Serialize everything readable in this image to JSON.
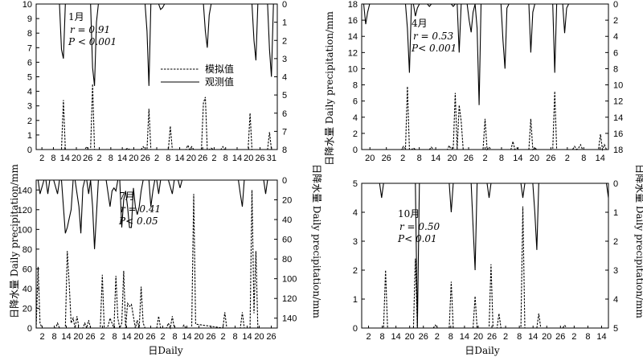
{
  "figure": {
    "xlabel": "日Daily",
    "ylabel_left": "日降水量 Daily precipitation/mm",
    "ylabel_right": "日降水量 Daily precipitation/mm",
    "legend_sim": "模拟值",
    "legend_obs": "观测值"
  },
  "chart_data": [
    {
      "type": "line",
      "month": "1月",
      "stat_r": "r = 0.91",
      "stat_p": "P < 0.001",
      "xlim": [
        0,
        124
      ],
      "xticks": [
        "2",
        "8",
        "14",
        "20",
        "26",
        "2",
        "8",
        "14",
        "20",
        "26",
        "2",
        "8",
        "14",
        "20",
        "26",
        "2",
        "8",
        "14",
        "20",
        "26",
        "31"
      ],
      "ylim_left": [
        0,
        10
      ],
      "yticks_left": [
        0,
        1,
        2,
        3,
        4,
        5,
        6,
        7,
        8,
        9,
        10
      ],
      "ylim_right": [
        0,
        8
      ],
      "yticks_right": [
        0,
        1,
        2,
        3,
        4,
        5,
        6,
        7,
        8
      ],
      "right_inverted": true,
      "legend": true,
      "series": [
        {
          "name": "模拟值",
          "style": "dashed",
          "axis": "left",
          "x": [
            0,
            12,
            13,
            14,
            15,
            16,
            25,
            26,
            27,
            28,
            29,
            30,
            46,
            47,
            48,
            49,
            50,
            51,
            52,
            53,
            54,
            55,
            56,
            57,
            58,
            59,
            60,
            68,
            69,
            70,
            77,
            78,
            79,
            80,
            81,
            85,
            86,
            87,
            88,
            89,
            90,
            91,
            95,
            96,
            97,
            98,
            108,
            109,
            110,
            111,
            112,
            119,
            120,
            121,
            124
          ],
          "y": [
            0,
            0,
            0,
            3.4,
            0,
            0,
            0,
            0.2,
            0,
            0,
            4.5,
            0,
            0,
            0.1,
            0,
            0,
            0,
            0,
            0,
            0,
            0,
            0.2,
            0,
            0,
            2.8,
            0,
            0,
            0,
            1.6,
            0,
            0,
            0.3,
            0,
            0.2,
            0,
            0,
            3.2,
            3.6,
            0,
            0,
            0.1,
            0,
            0,
            0.2,
            0,
            0,
            0,
            0,
            2.5,
            0,
            0,
            0,
            1.2,
            0,
            0
          ]
        },
        {
          "name": "观测值",
          "style": "solid",
          "axis": "right",
          "x": [
            0,
            12,
            13,
            14,
            15,
            16,
            28,
            29,
            30,
            31,
            32,
            56,
            57,
            58,
            59,
            63,
            64,
            65,
            66,
            68,
            69,
            86,
            87,
            88,
            89,
            90,
            111,
            112,
            113,
            114,
            119,
            120,
            121,
            122,
            124
          ],
          "y": [
            0,
            0,
            2.5,
            3,
            0,
            0,
            0,
            3.5,
            4.5,
            1,
            0,
            0,
            1.5,
            4.5,
            0,
            0,
            0.3,
            0.2,
            0,
            0,
            0,
            0,
            1.5,
            2.4,
            0.6,
            0,
            0,
            2,
            3.1,
            0,
            0,
            2.5,
            4,
            0,
            0
          ]
        }
      ]
    },
    {
      "type": "line",
      "month": "4月",
      "stat_r": "r = 0.53",
      "stat_p": "P< 0.001",
      "xlim": [
        0,
        124
      ],
      "xticks": [
        "20",
        "26",
        "2",
        "8",
        "14",
        "20",
        "26",
        "2",
        "8",
        "14",
        "20",
        "26",
        "2",
        "8",
        "14"
      ],
      "ylim_left": [
        0,
        18
      ],
      "yticks_left": [
        0,
        2,
        4,
        6,
        8,
        10,
        12,
        14,
        16,
        18
      ],
      "ylim_right": [
        0,
        18
      ],
      "yticks_right": [
        0,
        2,
        4,
        6,
        8,
        10,
        12,
        14,
        16,
        18
      ],
      "right_inverted": true,
      "legend": false,
      "series": [
        {
          "name": "模拟值",
          "style": "dashed",
          "axis": "left",
          "x": [
            0,
            20,
            21,
            22,
            23,
            24,
            25,
            26,
            27,
            34,
            35,
            36,
            43,
            44,
            45,
            46,
            47,
            48,
            49,
            50,
            51,
            52,
            60,
            61,
            62,
            63,
            64,
            65,
            66,
            75,
            76,
            77,
            78,
            79,
            80,
            84,
            85,
            86,
            87,
            88,
            96,
            97,
            98,
            99,
            106,
            107,
            108,
            109,
            110,
            111,
            112,
            119,
            120,
            121,
            122,
            123,
            124
          ],
          "y": [
            0,
            0,
            0.4,
            0.1,
            7.8,
            0,
            0,
            0.2,
            0,
            0,
            0.3,
            0,
            0,
            0.5,
            0,
            0,
            7,
            0,
            5.5,
            3.5,
            0,
            0,
            0,
            0,
            3.8,
            0,
            0.3,
            0,
            0,
            0,
            1,
            0,
            0.2,
            0,
            0,
            0,
            3.8,
            0,
            0.2,
            0,
            0,
            7.2,
            0,
            0,
            0,
            0.4,
            0,
            0.2,
            0.6,
            0,
            0,
            0,
            1.9,
            0,
            0.6,
            0,
            0
          ]
        },
        {
          "name": "观测值",
          "style": "solid",
          "axis": "right",
          "x": [
            0,
            1,
            2,
            3,
            4,
            22,
            23,
            24,
            25,
            26,
            27,
            28,
            29,
            31,
            33,
            34,
            35,
            36,
            37,
            45,
            46,
            47,
            48,
            49,
            50,
            53,
            54,
            55,
            56,
            57,
            58,
            59,
            60,
            61,
            62,
            70,
            71,
            72,
            73,
            74,
            75,
            84,
            85,
            86,
            87,
            88,
            89,
            90,
            96,
            97,
            98,
            99,
            101,
            102,
            103,
            104,
            105,
            124
          ],
          "y": [
            0,
            0,
            2.5,
            1,
            0,
            0,
            3,
            8.5,
            0,
            0,
            1.5,
            0.5,
            0,
            0,
            0,
            0.3,
            0,
            0,
            0,
            0,
            0.3,
            0,
            0,
            6,
            0,
            0,
            2,
            3.5,
            1,
            0,
            3,
            12.5,
            0,
            0,
            0,
            0,
            4.5,
            8,
            0.5,
            0,
            0,
            0,
            6,
            1,
            0,
            0,
            0,
            0,
            0,
            8.5,
            0,
            0,
            0,
            3.6,
            0.5,
            0,
            0,
            0
          ]
        }
      ]
    },
    {
      "type": "line",
      "month": "7月",
      "stat_r": "r = 0.41",
      "stat_p": "P< 0.05",
      "xlim": [
        0,
        124
      ],
      "xticks": [
        "2",
        "8",
        "14",
        "20",
        "26",
        "2",
        "8",
        "14",
        "20",
        "26",
        "2",
        "8",
        "14",
        "20",
        "26",
        "2",
        "8",
        "14",
        "20",
        "26"
      ],
      "ylim_left": [
        0,
        150
      ],
      "yticks_left": [
        0,
        20,
        40,
        60,
        80,
        100,
        120,
        140
      ],
      "ylim_right": [
        0,
        150
      ],
      "yticks_right": [
        0,
        20,
        40,
        60,
        80,
        100,
        120,
        140
      ],
      "right_inverted": true,
      "legend": false,
      "series": [
        {
          "name": "模拟值",
          "style": "dashed",
          "axis": "left",
          "x": [
            0,
            1,
            2,
            3,
            10,
            11,
            12,
            15,
            16,
            17,
            18,
            19,
            20,
            21,
            22,
            24,
            25,
            26,
            27,
            28,
            33,
            34,
            35,
            36,
            37,
            38,
            40,
            41,
            42,
            43,
            44,
            45,
            46,
            47,
            48,
            49,
            51,
            52,
            53,
            54,
            55,
            56,
            62,
            63,
            64,
            67,
            68,
            69,
            70,
            71,
            75,
            76,
            77,
            78,
            80,
            81,
            82,
            96,
            97,
            98,
            105,
            106,
            107,
            110,
            111,
            112,
            113,
            114,
            124
          ],
          "y": [
            0,
            62,
            5,
            0,
            0,
            5,
            0,
            0,
            78,
            45,
            5,
            10,
            0,
            12,
            0,
            0,
            5,
            0,
            8,
            0,
            0,
            54,
            0,
            0,
            2,
            10,
            0,
            53,
            10,
            0,
            5,
            58,
            0,
            25,
            22,
            24,
            0,
            8,
            0,
            42,
            5,
            0,
            0,
            12,
            0,
            0,
            5,
            0,
            12,
            0,
            0,
            3,
            0,
            0,
            0,
            136,
            4,
            0,
            16,
            0,
            0,
            16,
            0,
            0,
            140,
            15,
            78,
            0,
            0
          ]
        },
        {
          "name": "观测值",
          "style": "solid",
          "axis": "right",
          "x": [
            0,
            1,
            2,
            4,
            5,
            6,
            7,
            8,
            9,
            11,
            12,
            13,
            14,
            15,
            16,
            17,
            18,
            19,
            20,
            22,
            23,
            24,
            25,
            26,
            27,
            28,
            29,
            30,
            32,
            33,
            34,
            35,
            36,
            38,
            39,
            40,
            41,
            42,
            43,
            44,
            45,
            46,
            47,
            48,
            49,
            50,
            51,
            52,
            53,
            54,
            55,
            58,
            59,
            60,
            61,
            62,
            63,
            64,
            65,
            66,
            67,
            68,
            70,
            71,
            72,
            73,
            74,
            75,
            78,
            79,
            80,
            81,
            83,
            84,
            85,
            86,
            87,
            88,
            95,
            96,
            97,
            98,
            99,
            100,
            101,
            103,
            104,
            105,
            106,
            107,
            108,
            110,
            112,
            113,
            114,
            115,
            116,
            117,
            118,
            119,
            120,
            121,
            122,
            123,
            124
          ],
          "y": [
            0,
            0,
            14,
            0,
            0,
            14,
            0,
            0,
            0,
            14,
            0,
            0,
            27,
            54,
            48,
            39,
            30,
            0,
            0,
            27,
            54,
            8,
            0,
            0,
            14,
            0,
            27,
            70,
            0,
            0,
            0,
            0,
            0,
            27,
            11,
            8,
            11,
            0,
            0,
            48,
            20,
            11,
            27,
            48,
            48,
            8,
            27,
            35,
            27,
            11,
            0,
            0,
            27,
            11,
            0,
            0,
            14,
            0,
            0,
            0,
            0,
            0,
            14,
            0,
            0,
            0,
            8,
            0,
            0,
            0,
            0,
            0,
            0,
            0,
            0,
            0,
            0,
            0,
            0,
            0,
            0,
            0,
            0,
            0,
            0,
            0,
            0,
            14,
            27,
            0,
            0,
            0,
            0,
            0,
            0,
            0,
            0,
            0,
            14,
            0,
            0,
            0,
            0,
            0,
            0
          ]
        }
      ]
    },
    {
      "type": "line",
      "month": "10月",
      "stat_r": "r = 0.50",
      "stat_p": "P< 0.01",
      "xlim": [
        0,
        124
      ],
      "xticks": [
        "2",
        "8",
        "14",
        "20",
        "26",
        "2",
        "8",
        "14",
        "20",
        "26",
        "2",
        "8",
        "14",
        "20",
        "26",
        "2",
        "8",
        "14"
      ],
      "ylim_left": [
        0,
        5
      ],
      "yticks_left": [
        0,
        1,
        2,
        3,
        4,
        5
      ],
      "ylim_right": [
        0,
        5
      ],
      "yticks_right": [
        0,
        1,
        2,
        3,
        4,
        5
      ],
      "right_inverted": true,
      "legend": false,
      "series": [
        {
          "name": "模拟值",
          "style": "dashed",
          "axis": "left",
          "x": [
            0,
            11,
            12,
            13,
            14,
            15,
            24,
            25,
            26,
            27,
            28,
            29,
            30,
            36,
            37,
            38,
            43,
            44,
            45,
            46,
            47,
            47.5,
            48,
            56,
            57,
            58,
            59,
            60,
            64,
            65,
            66,
            68,
            69,
            70,
            71,
            79,
            80,
            81,
            82,
            83,
            88,
            89,
            90,
            91,
            92,
            100,
            101,
            102,
            103,
            104,
            105,
            106,
            107,
            124
          ],
          "y": [
            0,
            0,
            2,
            0,
            0,
            0,
            0,
            0,
            0,
            2.4,
            0,
            0,
            0,
            0,
            0.1,
            0,
            0,
            0,
            1.6,
            0,
            0,
            0,
            0,
            0,
            1.1,
            0,
            0,
            0,
            0,
            2.2,
            0,
            0,
            0.5,
            0,
            0,
            0,
            0,
            4.2,
            0,
            0,
            0,
            0.5,
            0,
            0,
            0,
            0,
            0,
            0.1,
            0,
            0,
            0,
            0,
            0,
            0
          ]
        },
        {
          "name": "观测值",
          "style": "solid",
          "axis": "right",
          "x": [
            0,
            9,
            10,
            11,
            27,
            28,
            29,
            44,
            45,
            46,
            55,
            56,
            57,
            58,
            63,
            64,
            65,
            80,
            81,
            82,
            86,
            87,
            88,
            89,
            90,
            123,
            124
          ],
          "y": [
            0,
            0,
            0.5,
            0,
            0,
            5,
            0,
            0,
            1,
            0,
            0,
            1.5,
            3,
            0,
            0,
            0.5,
            0,
            0,
            0.5,
            0,
            0,
            1,
            2.3,
            0,
            0,
            0,
            0.5
          ]
        }
      ]
    }
  ]
}
